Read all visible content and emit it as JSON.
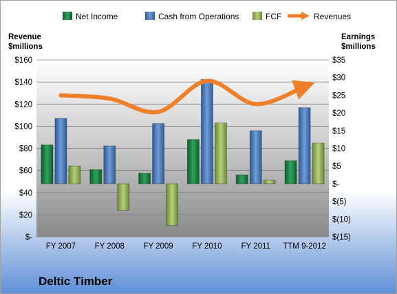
{
  "chart_data": {
    "type": "bar",
    "title": "Deltic Timber",
    "categories": [
      "FY 2007",
      "FY 2008",
      "FY 2009",
      "FY 2010",
      "FY 2011",
      "TTM 9-2012"
    ],
    "left_axis": {
      "label_line1": "Revenue",
      "label_line2": "$millions",
      "ticks": [
        "$-",
        "$20",
        "$40",
        "$60",
        "$80",
        "$100",
        "$120",
        "$140",
        "$160"
      ],
      "ylim": [
        0,
        160
      ]
    },
    "right_axis": {
      "label_line1": "Earnings",
      "label_line2": "$millions",
      "ticks": [
        "$(15)",
        "$(10)",
        "$(5)",
        "$-",
        "$5",
        "$10",
        "$15",
        "$20",
        "$25",
        "$30",
        "$35"
      ],
      "ylim": [
        -15,
        35
      ]
    },
    "series": [
      {
        "name": "Net Income",
        "axis": "right",
        "kind": "bar",
        "color": "#1E8A44",
        "values": [
          11,
          4,
          3,
          12.5,
          2.5,
          6.5
        ]
      },
      {
        "name": "Cash from Operations",
        "axis": "right",
        "kind": "bar",
        "color": "#4F81BD",
        "values": [
          18.5,
          10.7,
          17,
          29.5,
          15,
          21.5
        ]
      },
      {
        "name": "FCF",
        "axis": "right",
        "kind": "bar",
        "color": "#9BBB59",
        "values": [
          5,
          -7.5,
          -11.8,
          17.2,
          1,
          11.5
        ]
      },
      {
        "name": "Revenues",
        "axis": "left",
        "kind": "line",
        "color": "#F07F2A",
        "values": [
          128,
          125,
          113,
          141,
          120,
          136
        ]
      }
    ],
    "legend_position": "top",
    "grid": true
  }
}
